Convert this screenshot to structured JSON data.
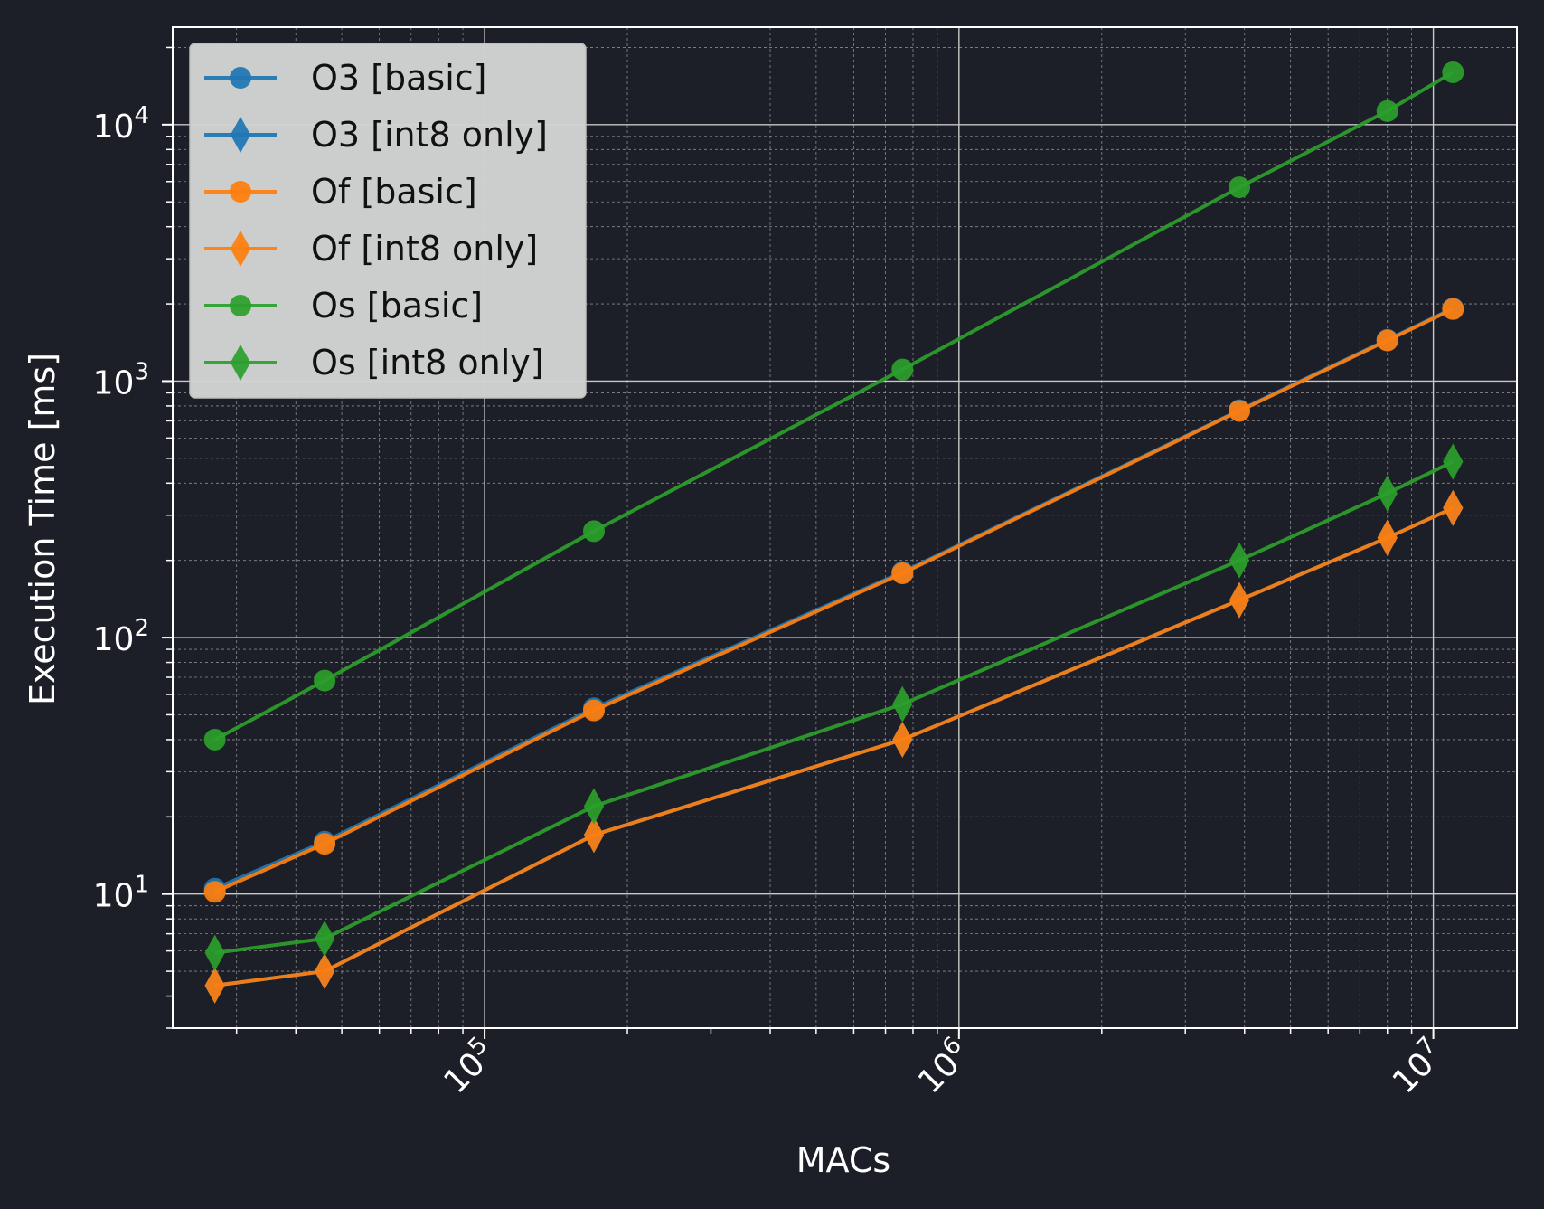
{
  "chart_data": {
    "type": "line",
    "xlabel": "MACs",
    "ylabel": "Execution Time [ms]",
    "x_scale": "log",
    "y_scale": "log",
    "xlim": [
      22000,
      15000000
    ],
    "ylim": [
      3,
      24000
    ],
    "x_ticks": [
      {
        "value": 100000,
        "base": "10",
        "exp": "5"
      },
      {
        "value": 1000000,
        "base": "10",
        "exp": "6"
      },
      {
        "value": 10000000,
        "base": "10",
        "exp": "7"
      }
    ],
    "y_ticks": [
      {
        "value": 10,
        "base": "10",
        "exp": "1"
      },
      {
        "value": 100,
        "base": "10",
        "exp": "2"
      },
      {
        "value": 1000,
        "base": "10",
        "exp": "3"
      },
      {
        "value": 10000,
        "base": "10",
        "exp": "4"
      }
    ],
    "grid": true,
    "legend_position": "top-left",
    "colors": {
      "background": "#1c1f27",
      "axes": "#ffffff",
      "legend_bg": "#d3d3d3"
    },
    "series": [
      {
        "name": "O3 [basic]",
        "marker": "circle",
        "color": "#1f77b4",
        "x": [
          27000,
          46000,
          170000,
          760000,
          3900000,
          8000000,
          11000000
        ],
        "y": [
          10.5,
          16,
          53,
          180,
          770,
          1450,
          1920
        ]
      },
      {
        "name": "O3 [int8 only]",
        "marker": "diamond",
        "color": "#1f77b4",
        "x": [
          27000,
          46000,
          170000,
          760000,
          3900000,
          8000000,
          11000000
        ],
        "y": [
          4.4,
          5,
          17,
          40,
          140,
          245,
          320
        ]
      },
      {
        "name": "Of [basic]",
        "marker": "circle",
        "color": "#ff7f0e",
        "x": [
          27000,
          46000,
          170000,
          760000,
          3900000,
          8000000,
          11000000
        ],
        "y": [
          10.2,
          15.7,
          52,
          178,
          765,
          1440,
          1910
        ]
      },
      {
        "name": "Of [int8 only]",
        "marker": "diamond",
        "color": "#ff7f0e",
        "x": [
          27000,
          46000,
          170000,
          760000,
          3900000,
          8000000,
          11000000
        ],
        "y": [
          4.4,
          5,
          17,
          40,
          140,
          245,
          320
        ]
      },
      {
        "name": "Os [basic]",
        "marker": "circle",
        "color": "#2ca02c",
        "x": [
          27000,
          46000,
          170000,
          760000,
          3900000,
          8000000,
          11000000
        ],
        "y": [
          40,
          68,
          260,
          1110,
          5700,
          11300,
          16000
        ]
      },
      {
        "name": "Os [int8 only]",
        "marker": "diamond",
        "color": "#2ca02c",
        "x": [
          27000,
          46000,
          170000,
          760000,
          3900000,
          8000000,
          11000000
        ],
        "y": [
          5.9,
          6.7,
          22,
          55,
          200,
          365,
          485
        ]
      }
    ]
  }
}
